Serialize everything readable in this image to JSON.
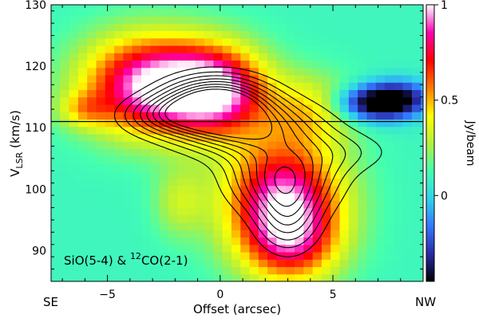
{
  "chart_data": {
    "type": "heatmap",
    "title": "",
    "xlabel": "Offset (arcsec)",
    "ylabel_main": "V",
    "ylabel_sub": "LSR",
    "ylabel_unit": " (km/s)",
    "xlim": [
      -7.5,
      9.0
    ],
    "ylim": [
      85,
      130
    ],
    "x_ticks": [
      -5,
      0,
      5
    ],
    "x_tick_labels": [
      "−5",
      "0",
      "5"
    ],
    "y_ticks": [
      90,
      100,
      110,
      120,
      130
    ],
    "y_tick_labels": [
      "90",
      "100",
      "110",
      "120",
      "130"
    ],
    "x_end_labels": {
      "left": "SE",
      "right": "NW"
    },
    "systemic_velocity": 111,
    "annotation": {
      "part1": "SiO(5-4) & ",
      "sup": "12",
      "part2": "CO(2-1)"
    },
    "colorbar": {
      "label": "Jy/beam",
      "range": [
        -0.45,
        1.0
      ],
      "ticks": [
        0,
        0.5,
        1
      ],
      "tick_labels": [
        "0",
        "0.5",
        "1"
      ],
      "colormap": [
        "#000000",
        "#2a2aa8",
        "#3478ff",
        "#2fd4ea",
        "#44ffb0",
        "#b4f03a",
        "#ffff00",
        "#ff7a00",
        "#ff0000",
        "#ff00b4",
        "#ffffff"
      ]
    },
    "background_level": 0.1,
    "color_peaks": [
      {
        "name": "blob-upper-left",
        "x": -3.2,
        "y": 117,
        "sx": 2.0,
        "sy": 5.5,
        "amp": 0.85
      },
      {
        "name": "blob-upper-center",
        "x": -0.2,
        "y": 116,
        "sx": 1.6,
        "sy": 5.0,
        "amp": 0.82
      },
      {
        "name": "blob-lower-center",
        "x": 2.8,
        "y": 98,
        "sx": 1.8,
        "sy": 7.0,
        "amp": 0.85
      },
      {
        "name": "blob-lower-wing",
        "x": 3.2,
        "y": 91,
        "sx": 1.4,
        "sy": 4.5,
        "amp": 0.35
      },
      {
        "name": "blob-upper-wing",
        "x": 4.0,
        "y": 113,
        "sx": 1.4,
        "sy": 4.0,
        "amp": 0.3
      },
      {
        "name": "blob-left-ridge",
        "x": -6.0,
        "y": 113,
        "sx": 0.8,
        "sy": 2.0,
        "amp": 0.25
      },
      {
        "name": "blob-minor-left",
        "x": -1.8,
        "y": 98,
        "sx": 0.8,
        "sy": 4.0,
        "amp": 0.2
      },
      {
        "name": "dip-right",
        "x": 6.8,
        "y": 114,
        "sx": 1.2,
        "sy": 2.0,
        "amp": -0.55
      },
      {
        "name": "dip-right-2",
        "x": 8.0,
        "y": 115,
        "sx": 1.0,
        "sy": 2.0,
        "amp": -0.35
      }
    ],
    "contour_peaks": [
      {
        "x": -0.2,
        "y": 114,
        "sx": 1.6,
        "sy": 3.0,
        "amp": 1.0
      },
      {
        "x": 1.2,
        "y": 110,
        "sx": 2.2,
        "sy": 3.2,
        "amp": 0.7
      },
      {
        "x": 2.8,
        "y": 102,
        "sx": 1.6,
        "sy": 4.0,
        "amp": 0.75
      },
      {
        "x": 3.0,
        "y": 95,
        "sx": 1.0,
        "sy": 4.0,
        "amp": 0.45
      },
      {
        "x": -2.5,
        "y": 112,
        "sx": 1.4,
        "sy": 2.2,
        "amp": 0.4
      },
      {
        "x": 5.5,
        "y": 106,
        "sx": 1.8,
        "sy": 2.5,
        "amp": 0.2
      }
    ],
    "contour_levels": [
      0.15,
      0.25,
      0.35,
      0.45,
      0.55,
      0.65,
      0.75,
      0.85
    ]
  }
}
